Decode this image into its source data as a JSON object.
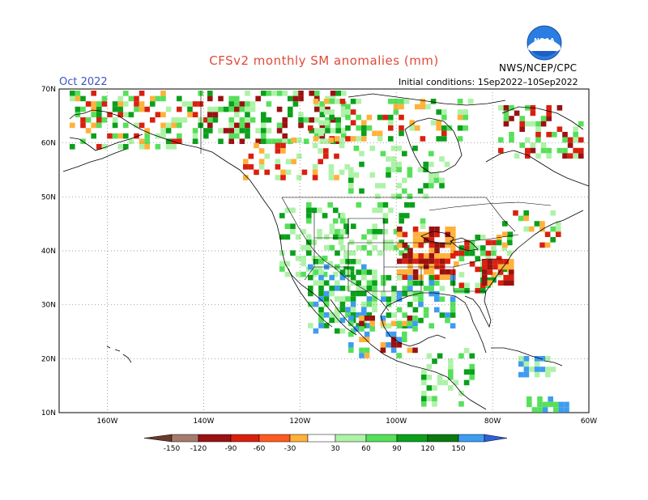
{
  "title": "CFSv2 monthly SM anomalies (mm)",
  "month": "Oct 2022",
  "initial_conditions": "Initial conditions: 1Sep2022–10Sep2022",
  "agency": "NWS/NCEP/CPC",
  "logo_text": "NOAA",
  "map": {
    "lon_range": [
      -170,
      -60
    ],
    "lat_range": [
      10,
      70
    ],
    "lat_labels": [
      "70N",
      "60N",
      "50N",
      "40N",
      "30N",
      "20N",
      "10N"
    ],
    "lon_labels": [
      "160W",
      "140W",
      "120W",
      "100W",
      "80W",
      "60W"
    ]
  },
  "colorbar": {
    "labels": [
      "-150",
      "-120",
      "-90",
      "-60",
      "-30",
      "30",
      "60",
      "90",
      "120",
      "150"
    ],
    "colors": [
      "#6b3a2a",
      "#a67b6e",
      "#9b1111",
      "#d9200f",
      "#ff5a1f",
      "#ffb13a",
      "#ffffff",
      "#aef2a8",
      "#56e05a",
      "#0aa01b",
      "#0b7a10",
      "#3e9cf0",
      "#2f5fd8"
    ]
  },
  "legend_classes": {
    "dry_strong": "#9b1111",
    "dry_med": "#d9200f",
    "dry_light": "#ffb13a",
    "wet_light": "#aef2a8",
    "wet_med": "#56e05a",
    "wet_strong": "#0aa01b",
    "wet_vstrong": "#3e9cf0"
  }
}
